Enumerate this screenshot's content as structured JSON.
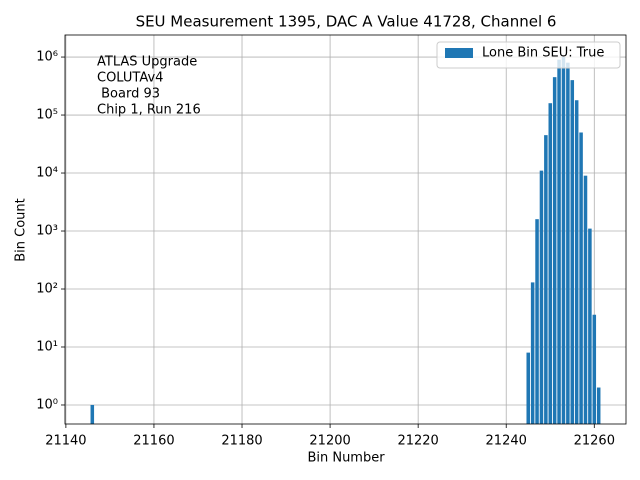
{
  "chart_data": {
    "type": "bar",
    "title": "SEU Measurement 1395, DAC A Value 41728, Channel 6",
    "x_label": "Bin Number",
    "y_label": "Bin Count",
    "annotation": [
      "ATLAS Upgrade",
      "COLUTAv4",
      " Board 93",
      "Chip 1, Run 216"
    ],
    "x": [
      21146,
      21245,
      21246,
      21247,
      21248,
      21249,
      21250,
      21251,
      21252,
      21253,
      21254,
      21255,
      21256,
      21257,
      21258,
      21259,
      21260,
      21261
    ],
    "series": [
      {
        "name": "Lone Bin SEU: True",
        "color": "#1f77b4",
        "values": [
          1,
          8,
          130,
          1600,
          11000,
          45000,
          160000,
          450000,
          900000,
          1000000,
          800000,
          400000,
          180000,
          50000,
          9000,
          1100,
          36,
          2
        ]
      }
    ],
    "xlim": [
      21139.8,
      21267.2
    ],
    "ylim": [
      0.47,
      2400000
    ],
    "xticks": [
      21140,
      21160,
      21180,
      21200,
      21220,
      21240,
      21260
    ],
    "yticks": [
      {
        "value": 1,
        "label": "10⁰"
      },
      {
        "value": 10,
        "label": "10¹"
      },
      {
        "value": 100,
        "label": "10²"
      },
      {
        "value": 1000,
        "label": "10³"
      },
      {
        "value": 10000,
        "label": "10⁴"
      },
      {
        "value": 100000,
        "label": "10⁵"
      },
      {
        "value": 1000000,
        "label": "10⁶"
      }
    ],
    "log_y": true,
    "grid": true,
    "legend": "upper right"
  }
}
